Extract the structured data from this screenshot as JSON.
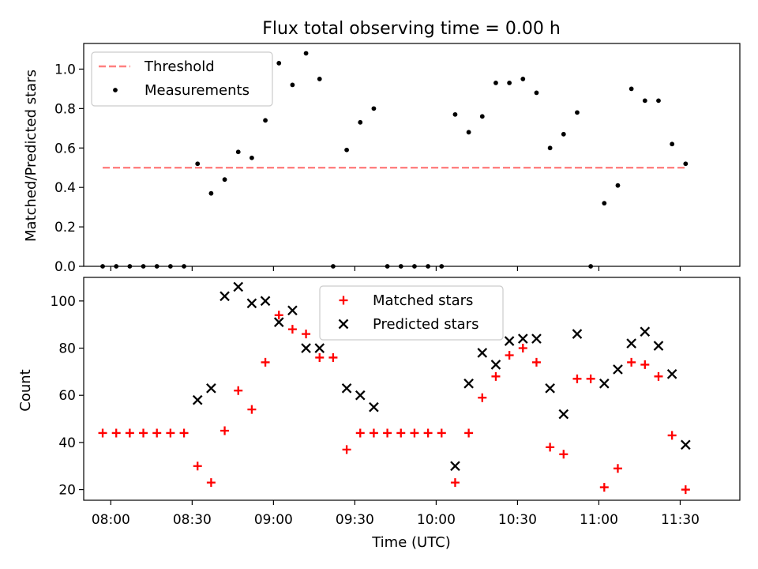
{
  "chart_data": [
    {
      "type": "scatter",
      "title": "Flux total observing time = 0.00 h",
      "xlabel": "",
      "ylabel": "Matched/Predicted stars",
      "xlim": [
        "07:50",
        "11:52"
      ],
      "ylim": [
        0,
        1.13
      ],
      "yticks": [
        0.0,
        0.2,
        0.4,
        0.6,
        0.8,
        1.0
      ],
      "ytick_labels": [
        "0.0",
        "0.2",
        "0.4",
        "0.6",
        "0.8",
        "1.0"
      ],
      "legend": "top-left",
      "series": [
        {
          "name": "Threshold",
          "style": "dashed-line",
          "color": "#ff8080",
          "points": [
            [
              "07:57",
              0.5
            ],
            [
              "11:32",
              0.5
            ]
          ]
        },
        {
          "name": "Measurements",
          "style": "dot",
          "color": "#000000",
          "points": [
            [
              "07:57",
              0.0
            ],
            [
              "08:02",
              0.0
            ],
            [
              "08:07",
              0.0
            ],
            [
              "08:12",
              0.0
            ],
            [
              "08:17",
              0.0
            ],
            [
              "08:22",
              0.0
            ],
            [
              "08:27",
              0.0
            ],
            [
              "08:32",
              0.52
            ],
            [
              "08:37",
              0.37
            ],
            [
              "08:42",
              0.44
            ],
            [
              "08:47",
              0.58
            ],
            [
              "08:52",
              0.55
            ],
            [
              "08:57",
              0.74
            ],
            [
              "09:02",
              1.03
            ],
            [
              "09:07",
              0.92
            ],
            [
              "09:12",
              1.08
            ],
            [
              "09:17",
              0.95
            ],
            [
              "09:22",
              0.0
            ],
            [
              "09:27",
              0.59
            ],
            [
              "09:32",
              0.73
            ],
            [
              "09:37",
              0.8
            ],
            [
              "09:42",
              0.0
            ],
            [
              "09:47",
              0.0
            ],
            [
              "09:52",
              0.0
            ],
            [
              "09:57",
              0.0
            ],
            [
              "10:02",
              0.0
            ],
            [
              "10:07",
              0.77
            ],
            [
              "10:12",
              0.68
            ],
            [
              "10:17",
              0.76
            ],
            [
              "10:22",
              0.93
            ],
            [
              "10:27",
              0.93
            ],
            [
              "10:32",
              0.95
            ],
            [
              "10:37",
              0.88
            ],
            [
              "10:42",
              0.6
            ],
            [
              "10:47",
              0.67
            ],
            [
              "10:52",
              0.78
            ],
            [
              "10:57",
              0.0
            ],
            [
              "11:02",
              0.32
            ],
            [
              "11:07",
              0.41
            ],
            [
              "11:12",
              0.9
            ],
            [
              "11:17",
              0.84
            ],
            [
              "11:22",
              0.84
            ],
            [
              "11:27",
              0.62
            ],
            [
              "11:32",
              0.52
            ]
          ]
        }
      ]
    },
    {
      "type": "scatter",
      "title": "",
      "xlabel": "Time (UTC)",
      "ylabel": "Count",
      "xlim": [
        "07:50",
        "11:52"
      ],
      "ylim": [
        15.5,
        110
      ],
      "yticks": [
        20,
        40,
        60,
        80,
        100
      ],
      "ytick_labels": [
        "20",
        "40",
        "60",
        "80",
        "100"
      ],
      "xticks": [
        "08:00",
        "08:30",
        "09:00",
        "09:30",
        "10:00",
        "10:30",
        "11:00",
        "11:30"
      ],
      "legend": "top-center",
      "series": [
        {
          "name": "Matched stars",
          "style": "plus",
          "color": "#ff0000",
          "points": [
            [
              "07:57",
              44
            ],
            [
              "08:02",
              44
            ],
            [
              "08:07",
              44
            ],
            [
              "08:12",
              44
            ],
            [
              "08:17",
              44
            ],
            [
              "08:22",
              44
            ],
            [
              "08:27",
              44
            ],
            [
              "08:32",
              30
            ],
            [
              "08:37",
              23
            ],
            [
              "08:42",
              45
            ],
            [
              "08:47",
              62
            ],
            [
              "08:52",
              54
            ],
            [
              "08:57",
              74
            ],
            [
              "09:02",
              94
            ],
            [
              "09:07",
              88
            ],
            [
              "09:12",
              86
            ],
            [
              "09:17",
              76
            ],
            [
              "09:22",
              76
            ],
            [
              "09:27",
              37
            ],
            [
              "09:32",
              44
            ],
            [
              "09:37",
              44
            ],
            [
              "09:42",
              44
            ],
            [
              "09:47",
              44
            ],
            [
              "09:52",
              44
            ],
            [
              "09:57",
              44
            ],
            [
              "10:02",
              44
            ],
            [
              "10:07",
              23
            ],
            [
              "10:12",
              44
            ],
            [
              "10:17",
              59
            ],
            [
              "10:22",
              68
            ],
            [
              "10:27",
              77
            ],
            [
              "10:32",
              80
            ],
            [
              "10:37",
              74
            ],
            [
              "10:42",
              38
            ],
            [
              "10:47",
              35
            ],
            [
              "10:52",
              67
            ],
            [
              "10:57",
              67
            ],
            [
              "11:02",
              21
            ],
            [
              "11:07",
              29
            ],
            [
              "11:12",
              74
            ],
            [
              "11:17",
              73
            ],
            [
              "11:22",
              68
            ],
            [
              "11:27",
              43
            ],
            [
              "11:32",
              20
            ]
          ]
        },
        {
          "name": "Predicted stars",
          "style": "x",
          "color": "#000000",
          "points": [
            [
              "08:32",
              58
            ],
            [
              "08:37",
              63
            ],
            [
              "08:42",
              102
            ],
            [
              "08:47",
              106
            ],
            [
              "08:52",
              99
            ],
            [
              "08:57",
              100
            ],
            [
              "09:02",
              91
            ],
            [
              "09:07",
              96
            ],
            [
              "09:12",
              80
            ],
            [
              "09:17",
              80
            ],
            [
              "09:27",
              63
            ],
            [
              "09:32",
              60
            ],
            [
              "09:37",
              55
            ],
            [
              "10:07",
              30
            ],
            [
              "10:12",
              65
            ],
            [
              "10:17",
              78
            ],
            [
              "10:22",
              73
            ],
            [
              "10:27",
              83
            ],
            [
              "10:32",
              84
            ],
            [
              "10:37",
              84
            ],
            [
              "10:42",
              63
            ],
            [
              "10:47",
              52
            ],
            [
              "10:52",
              86
            ],
            [
              "11:02",
              65
            ],
            [
              "11:07",
              71
            ],
            [
              "11:12",
              82
            ],
            [
              "11:17",
              87
            ],
            [
              "11:22",
              81
            ],
            [
              "11:27",
              69
            ],
            [
              "11:32",
              39
            ]
          ]
        }
      ]
    }
  ]
}
